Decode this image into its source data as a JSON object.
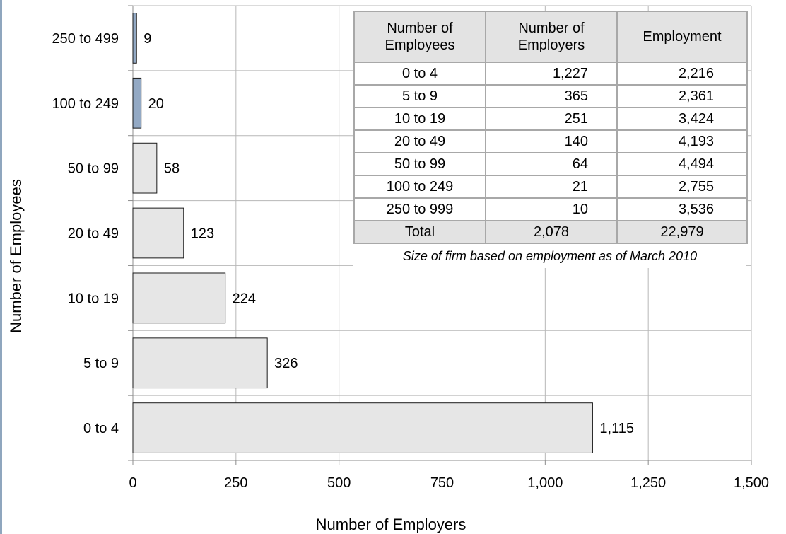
{
  "chart_data": {
    "type": "bar",
    "orientation": "horizontal",
    "categories": [
      "0 to 4",
      "5 to 9",
      "10 to 19",
      "20 to 49",
      "50 to 99",
      "100 to 249",
      "250 to 499"
    ],
    "values": [
      1115,
      326,
      224,
      123,
      58,
      20,
      9
    ],
    "value_labels": [
      "1,115",
      "326",
      "224",
      "123",
      "58",
      "20",
      "9"
    ],
    "highlighted_categories": [
      "100 to 249",
      "250 to 499"
    ],
    "colors": {
      "default_bar": "#e6e6e6",
      "highlight_bar": "#93a9c4",
      "bar_stroke": "#1a1a1a",
      "grid": "#b7b7b7",
      "axis": "#8c8c8c"
    },
    "xlabel": "Number of Employers",
    "ylabel": "Number of Employees",
    "xlim": [
      0,
      1500
    ],
    "xticks": [
      0,
      250,
      500,
      750,
      1000,
      1250,
      1500
    ],
    "xtick_labels": [
      "0",
      "250",
      "500",
      "750",
      "1,000",
      "1,250",
      "1,500"
    ],
    "grid": true,
    "title": ""
  },
  "inset_table": {
    "headers": [
      "Number of Employees",
      "Number of Employers",
      "Employment"
    ],
    "rows": [
      [
        "0 to 4",
        "1,227",
        "2,216"
      ],
      [
        "5 to 9",
        "365",
        "2,361"
      ],
      [
        "10 to 19",
        "251",
        "3,424"
      ],
      [
        "20 to 49",
        "140",
        "4,193"
      ],
      [
        "50 to 99",
        "64",
        "4,494"
      ],
      [
        "100 to 249",
        "21",
        "2,755"
      ],
      [
        "250 to 999",
        "10",
        "3,536"
      ]
    ],
    "total": [
      "Total",
      "2,078",
      "22,979"
    ],
    "note": "Size of firm based on employment as of March 2010"
  }
}
